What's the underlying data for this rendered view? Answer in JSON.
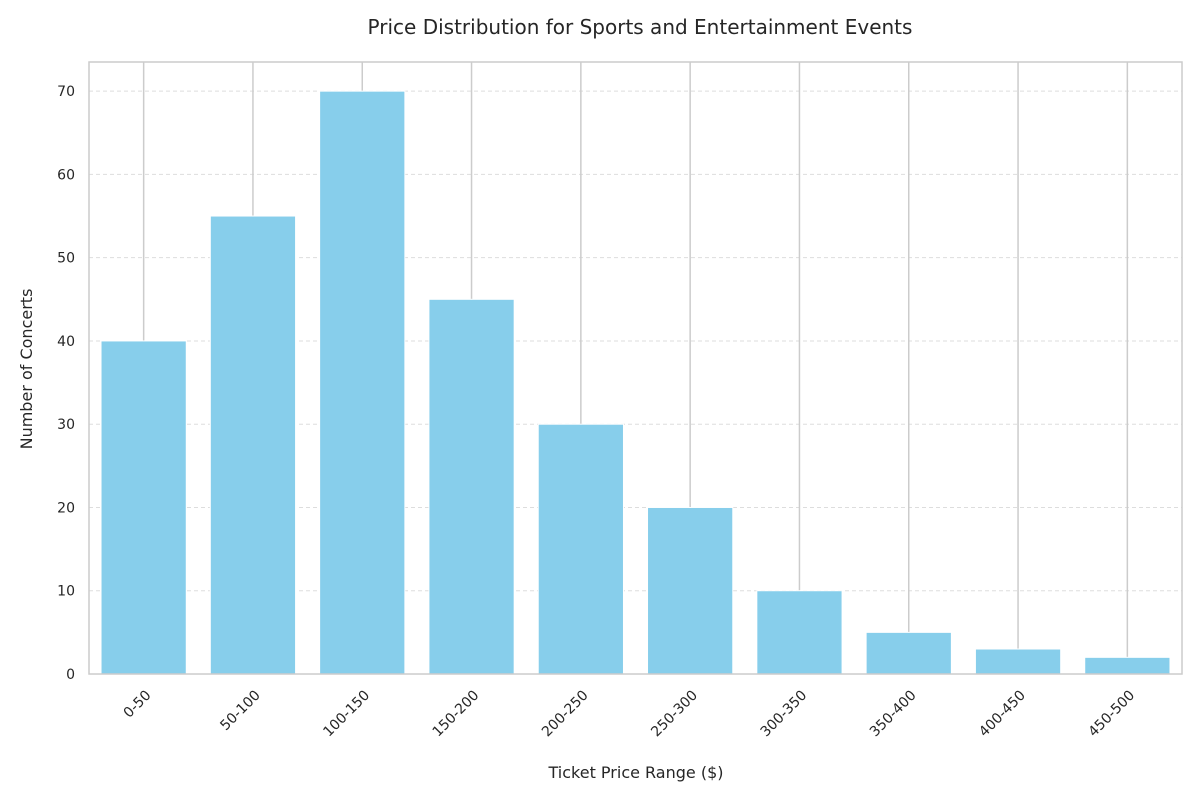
{
  "chart_data": {
    "type": "bar",
    "title": "Price Distribution for Sports and Entertainment Events",
    "xlabel": "Ticket Price Range ($)",
    "ylabel": "Number of Concerts",
    "categories": [
      "0-50",
      "50-100",
      "100-150",
      "150-200",
      "200-250",
      "250-300",
      "300-350",
      "350-400",
      "400-450",
      "450-500"
    ],
    "values": [
      40,
      55,
      70,
      45,
      30,
      20,
      10,
      5,
      3,
      2
    ],
    "ylim": [
      0,
      73.5
    ],
    "yticks": [
      0,
      10,
      20,
      30,
      40,
      50,
      60,
      70
    ],
    "grid": true,
    "legend": "none",
    "colors": {
      "bar": "#87CEEB",
      "grid_y": "#dddddd",
      "grid_x": "#cccccc",
      "frame": "#cccccc",
      "text": "#262626"
    }
  }
}
